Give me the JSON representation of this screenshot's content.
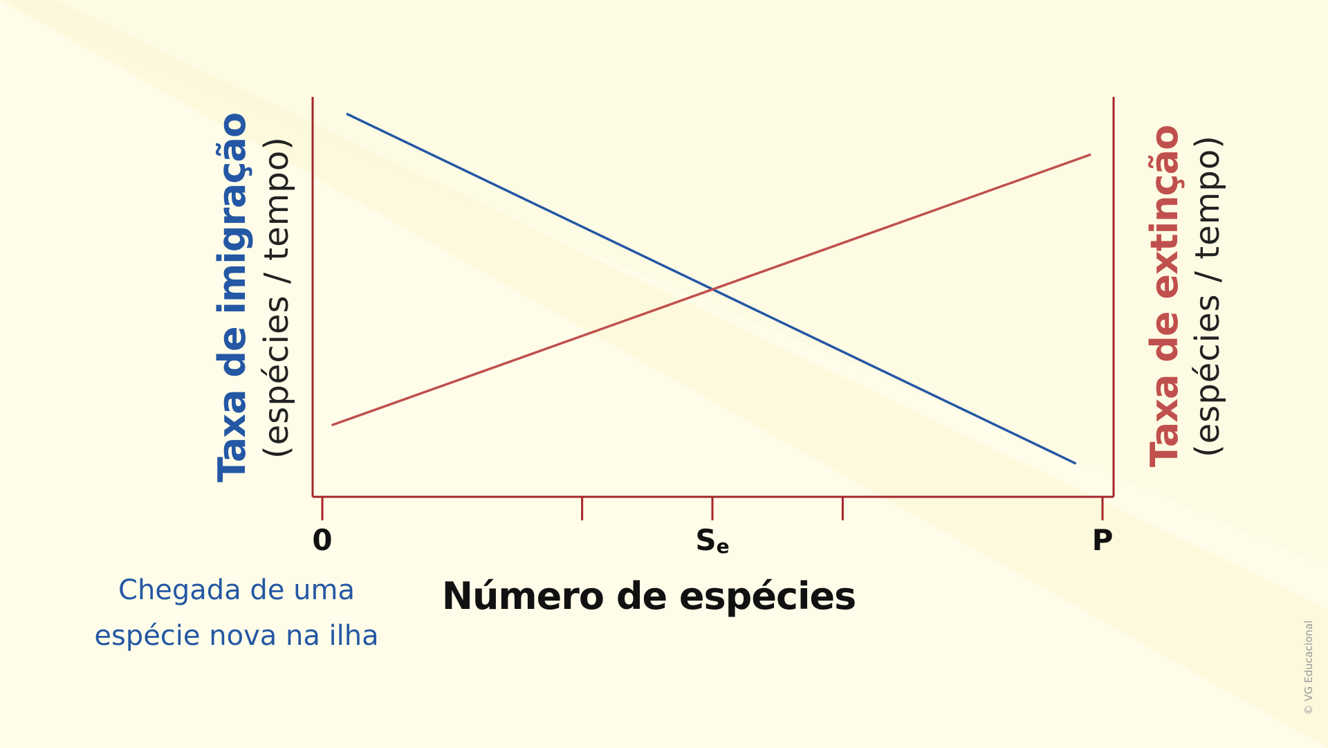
{
  "chart_data": {
    "type": "line",
    "xlabel": "Número de espécies",
    "ylabel_left": {
      "title": "Taxa de imigração",
      "unit": "(espécies / tempo)"
    },
    "ylabel_right": {
      "title": "Taxa de extinção",
      "unit": "(espécies / tempo)"
    },
    "x_ticks": [
      {
        "x": 0,
        "label": "0"
      },
      {
        "x": 0.333,
        "label": ""
      },
      {
        "x": 0.5,
        "label": "S",
        "sub": "e"
      },
      {
        "x": 0.667,
        "label": ""
      },
      {
        "x": 1,
        "label": "P"
      }
    ],
    "xlim": [
      0,
      1
    ],
    "ylim": [
      0,
      1
    ],
    "series": [
      {
        "name": "Taxa de imigração",
        "color": "#2457a4",
        "x": [
          0.031,
          0.966
        ],
        "y": [
          0.958,
          0.083
        ]
      },
      {
        "name": "Taxa de extinção",
        "color": "#c0504d",
        "x": [
          0.012,
          0.985
        ],
        "y": [
          0.179,
          0.856
        ]
      }
    ],
    "equilibrium": {
      "x": 0.5,
      "y": 0.52,
      "label": "Se"
    },
    "grid": false
  },
  "annotation": {
    "line1": "Chegada de uma",
    "line2": "espécie nova na ilha"
  },
  "copyright": "© VG Educacional",
  "colors": {
    "background": "#fdfbe4",
    "background_band": "#fbf8d8",
    "axis": "#a5252a",
    "immigration": "#2457a4",
    "extinction": "#c0504d",
    "text": "#111111"
  }
}
